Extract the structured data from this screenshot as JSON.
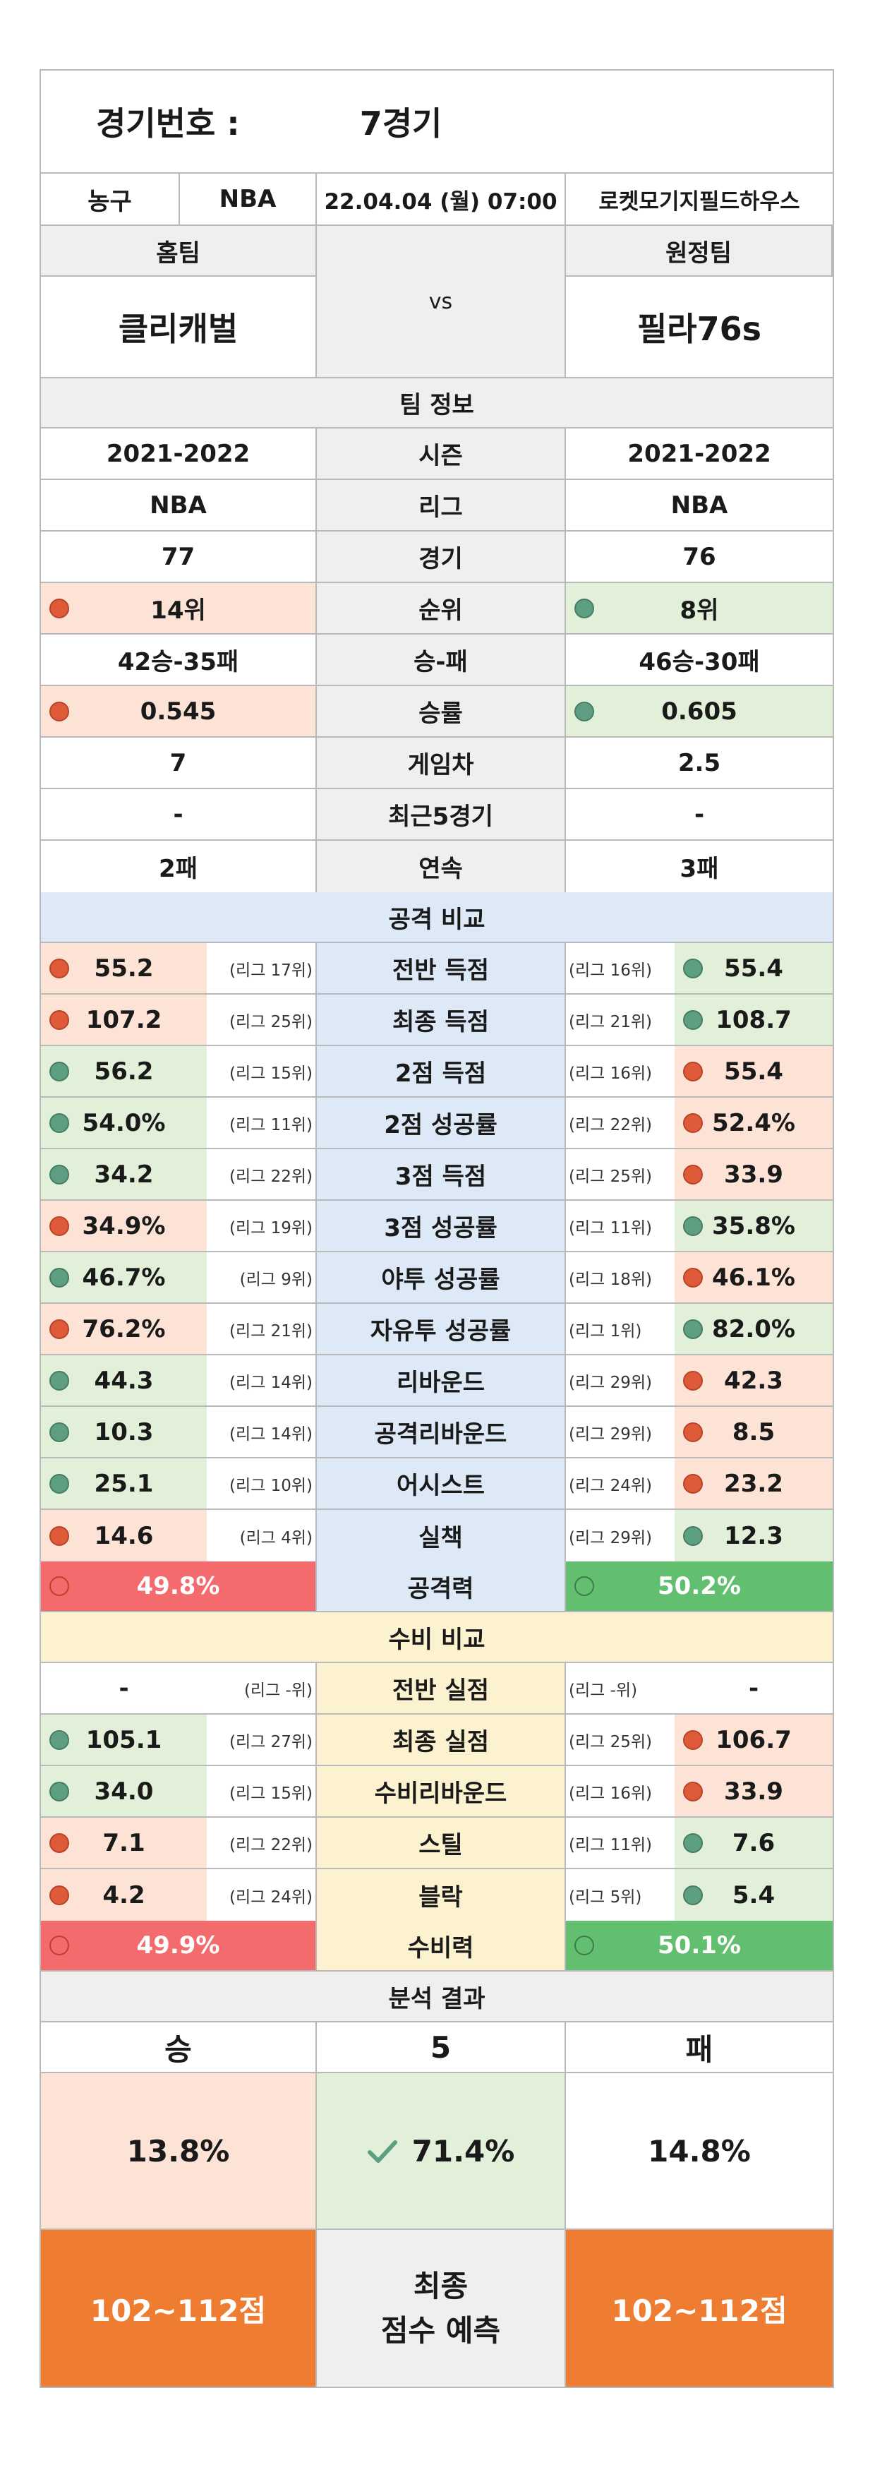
{
  "header": {
    "game_label": "경기번호 :",
    "game_value": "7경기"
  },
  "info": {
    "sport": "농구",
    "league": "NBA",
    "datetime": "22.04.04 (월) 07:00",
    "venue": "로켓모기지필드하우스"
  },
  "teams": {
    "home_label": "홈팀",
    "away_label": "원정팀",
    "vs": "vs",
    "home_name": "클리캐벌",
    "away_name": "필라76s"
  },
  "team_info": {
    "title": "팀 정보",
    "rows": [
      {
        "label": "시즌",
        "home": "2021-2022",
        "away": "2021-2022"
      },
      {
        "label": "리그",
        "home": "NBA",
        "away": "NBA"
      },
      {
        "label": "경기",
        "home": "77",
        "away": "76"
      },
      {
        "label": "순위",
        "home": "14위",
        "away": "8위"
      },
      {
        "label": "승-패",
        "home": "42승-35패",
        "away": "46승-30패"
      },
      {
        "label": "승률",
        "home": "0.545",
        "away": "0.605"
      },
      {
        "label": "게임차",
        "home": "7",
        "away": "2.5"
      },
      {
        "label": "최근5경기",
        "home": "-",
        "away": "-"
      },
      {
        "label": "연속",
        "home": "2패",
        "away": "3패"
      }
    ]
  },
  "offense": {
    "title": "공격 비교",
    "rows": [
      {
        "label": "전반 득점",
        "home": "55.2",
        "home_rank": "(리그 17위)",
        "away": "55.4",
        "away_rank": "(리그 16위)"
      },
      {
        "label": "최종 득점",
        "home": "107.2",
        "home_rank": "(리그 25위)",
        "away": "108.7",
        "away_rank": "(리그 21위)"
      },
      {
        "label": "2점 득점",
        "home": "56.2",
        "home_rank": "(리그 15위)",
        "away": "55.4",
        "away_rank": "(리그 16위)"
      },
      {
        "label": "2점 성공률",
        "home": "54.0%",
        "home_rank": "(리그 11위)",
        "away": "52.4%",
        "away_rank": "(리그 22위)"
      },
      {
        "label": "3점 득점",
        "home": "34.2",
        "home_rank": "(리그 22위)",
        "away": "33.9",
        "away_rank": "(리그 25위)"
      },
      {
        "label": "3점 성공률",
        "home": "34.9%",
        "home_rank": "(리그 19위)",
        "away": "35.8%",
        "away_rank": "(리그 11위)"
      },
      {
        "label": "야투 성공률",
        "home": "46.7%",
        "home_rank": "(리그 9위)",
        "away": "46.1%",
        "away_rank": "(리그 18위)"
      },
      {
        "label": "자유투 성공률",
        "home": "76.2%",
        "home_rank": "(리그 21위)",
        "away": "82.0%",
        "away_rank": "(리그 1위)"
      },
      {
        "label": "리바운드",
        "home": "44.3",
        "home_rank": "(리그 14위)",
        "away": "42.3",
        "away_rank": "(리그 29위)"
      },
      {
        "label": "공격리바운드",
        "home": "10.3",
        "home_rank": "(리그 14위)",
        "away": "8.5",
        "away_rank": "(리그 29위)"
      },
      {
        "label": "어시스트",
        "home": "25.1",
        "home_rank": "(리그 10위)",
        "away": "23.2",
        "away_rank": "(리그 24위)"
      },
      {
        "label": "실책",
        "home": "14.6",
        "home_rank": "(리그 4위)",
        "away": "12.3",
        "away_rank": "(리그 29위)"
      }
    ],
    "power_label": "공격력",
    "home_power": "49.8%",
    "away_power": "50.2%"
  },
  "defense": {
    "title": "수비 비교",
    "rows": [
      {
        "label": "전반 실점",
        "home": "-",
        "home_rank": "(리그 -위)",
        "away": "-",
        "away_rank": "(리그 -위)"
      },
      {
        "label": "최종 실점",
        "home": "105.1",
        "home_rank": "(리그 27위)",
        "away": "106.7",
        "away_rank": "(리그 25위)"
      },
      {
        "label": "수비리바운드",
        "home": "34.0",
        "home_rank": "(리그 15위)",
        "away": "33.9",
        "away_rank": "(리그 16위)"
      },
      {
        "label": "스틸",
        "home": "7.1",
        "home_rank": "(리그 22위)",
        "away": "7.6",
        "away_rank": "(리그 11위)"
      },
      {
        "label": "블락",
        "home": "4.2",
        "home_rank": "(리그 24위)",
        "away": "5.4",
        "away_rank": "(리그 5위)"
      }
    ],
    "power_label": "수비력",
    "home_power": "49.9%",
    "away_power": "50.1%"
  },
  "result": {
    "title": "분석 결과",
    "win": "승",
    "draw": "5",
    "lose": "패",
    "win_pct": "13.8%",
    "draw_pct": "71.4%",
    "lose_pct": "14.8%",
    "home_score": "102~112점",
    "final_line1": "최종",
    "final_line2": "점수 예측",
    "away_score": "102~112점"
  },
  "colors": {
    "good": "#5e9f82",
    "bad": "#de5a38",
    "good_bg": "#e2efd9",
    "bad_bg": "#fce3d6",
    "offense_bg": "#dde9f6",
    "defense_bg": "#fdf2cf",
    "score_bg": "#ee7d31"
  }
}
